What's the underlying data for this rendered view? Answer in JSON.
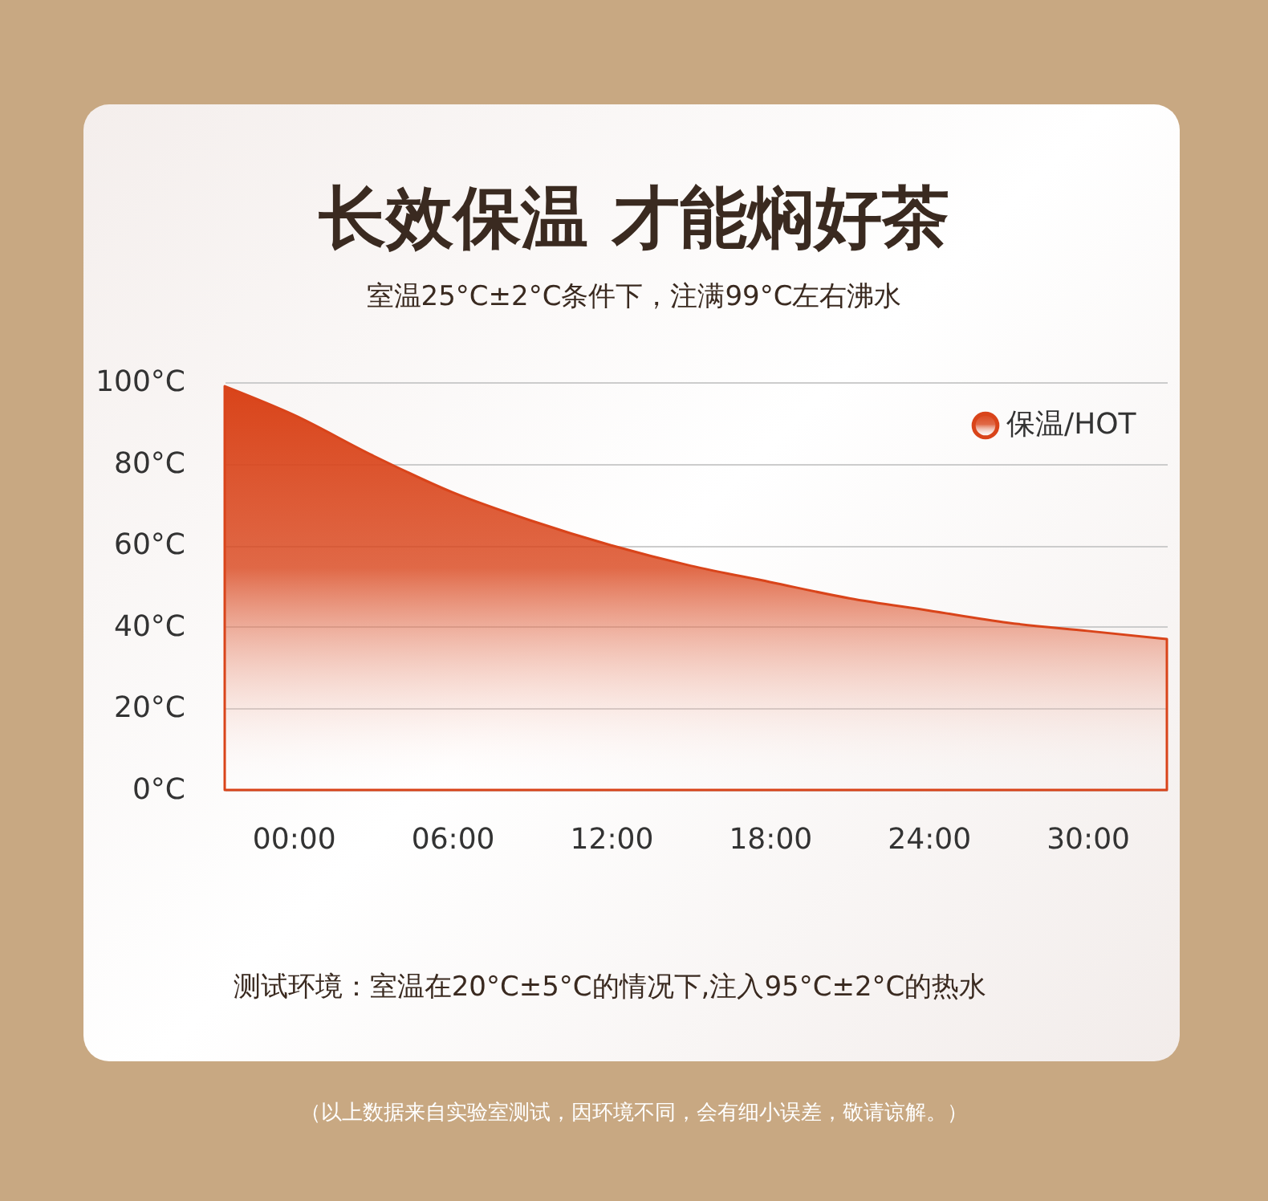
{
  "chart_data": {
    "type": "area",
    "title": "长效保温 才能焖好茶",
    "subtitle": "室温25°C±2°C条件下，注满99°C左右沸水",
    "x": [
      -2.6,
      0,
      3,
      6,
      9,
      12,
      15,
      18,
      21,
      24,
      27,
      30,
      33
    ],
    "series": [
      {
        "name": "保温/HOT",
        "color": "#d9441a",
        "values": [
          99,
          92,
          82,
          73,
          66,
          60,
          55,
          51,
          47,
          44,
          41,
          39,
          37
        ]
      }
    ],
    "xlim": [
      -2.6,
      33
    ],
    "xticks": [
      {
        "value": 0,
        "label": "00:00"
      },
      {
        "value": 6,
        "label": "06:00"
      },
      {
        "value": 12,
        "label": "12:00"
      },
      {
        "value": 18,
        "label": "18:00"
      },
      {
        "value": 24,
        "label": "24:00"
      },
      {
        "value": 30,
        "label": "30:00"
      }
    ],
    "ylim": [
      0,
      100
    ],
    "yticks": [
      {
        "value": 0,
        "label": "0°C"
      },
      {
        "value": 20,
        "label": "20°C"
      },
      {
        "value": 40,
        "label": "40°C"
      },
      {
        "value": 60,
        "label": "60°C"
      },
      {
        "value": 80,
        "label": "80°C"
      },
      {
        "value": 100,
        "label": "100°C"
      }
    ],
    "grid": "y",
    "legend": "top right",
    "annotations": [
      "测试环境：室温在20°C±5°C的情况下,注入95°C±2°C的热水",
      "（以上数据来自实验室测试，因环境不同，会有细小误差，敬请谅解。）"
    ]
  }
}
